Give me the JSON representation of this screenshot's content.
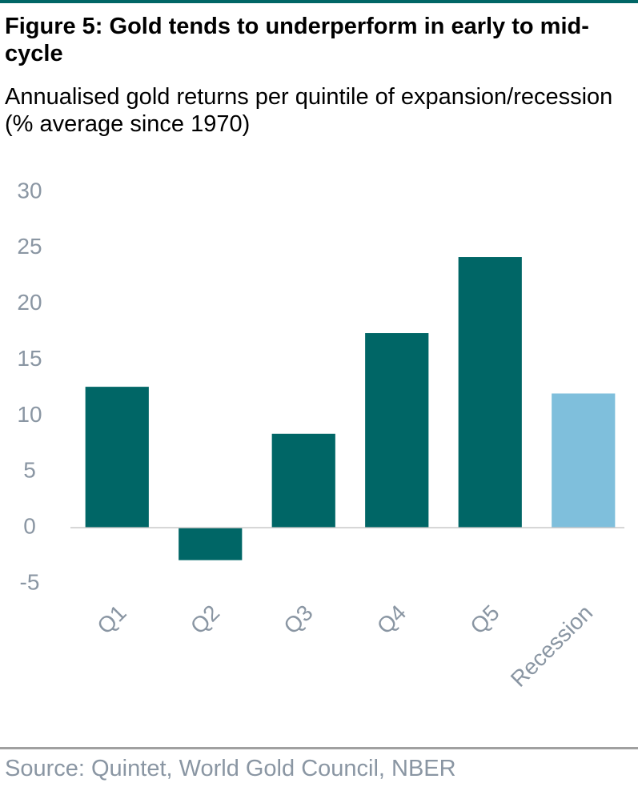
{
  "chart_data": {
    "type": "bar",
    "title": "Figure 5: Gold tends to underperform in early to mid-cycle",
    "subtitle": "Annualised gold returns per quintile of expansion/recession (% average since 1970)",
    "source": "Source: Quintet, World Gold Council, NBER",
    "categories": [
      "Q1",
      "Q2",
      "Q3",
      "Q4",
      "Q5",
      "Recession"
    ],
    "values": [
      12.6,
      -2.9,
      8.4,
      17.4,
      24.2,
      12.0
    ],
    "colors": [
      "#006666",
      "#006666",
      "#006666",
      "#006666",
      "#006666",
      "#7fbfdc"
    ],
    "ylim": [
      -5,
      30
    ],
    "yticks": [
      -5,
      0,
      5,
      10,
      15,
      20,
      25,
      30
    ],
    "grid": false
  }
}
